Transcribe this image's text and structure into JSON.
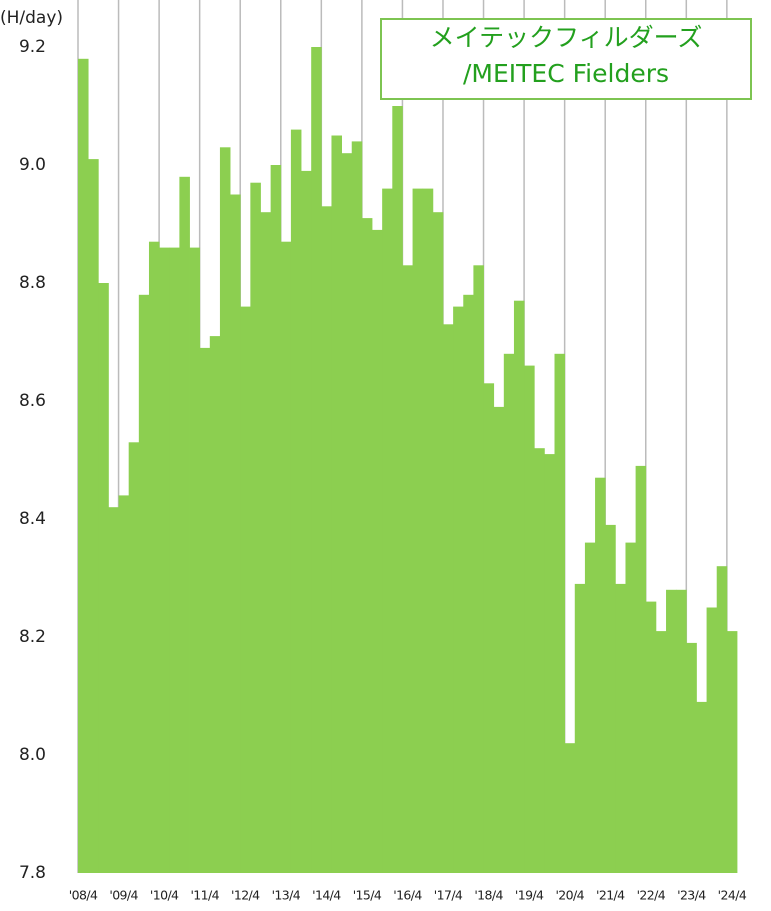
{
  "chart_data": {
    "type": "bar",
    "y_label": "(H/day)",
    "categories": [
      "'08/4",
      null,
      null,
      null,
      "'09/4",
      null,
      null,
      null,
      "'10/4",
      null,
      null,
      null,
      "'11/4",
      null,
      null,
      null,
      "'12/4",
      null,
      null,
      null,
      "'13/4",
      null,
      null,
      null,
      "'14/4",
      null,
      null,
      null,
      "'15/4",
      null,
      null,
      null,
      "'16/4",
      null,
      null,
      null,
      "'17/4",
      null,
      null,
      null,
      "'18/4",
      null,
      null,
      null,
      "'19/4",
      null,
      null,
      null,
      "'20/4",
      null,
      null,
      null,
      "'21/4",
      null,
      null,
      null,
      "'22/4",
      null,
      null,
      null,
      "'23/4",
      null,
      null,
      null,
      "'24/4"
    ],
    "series": [
      {
        "name": "メイテックフィルダーズ\n/MEITEC Fielders",
        "color": "#8ccf50",
        "values": [
          9.18,
          9.01,
          8.8,
          8.42,
          8.44,
          8.53,
          8.78,
          8.87,
          8.86,
          8.86,
          8.98,
          8.86,
          8.69,
          8.71,
          9.03,
          8.95,
          8.76,
          8.97,
          8.92,
          9.0,
          8.87,
          9.06,
          8.99,
          9.2,
          8.93,
          9.05,
          9.02,
          9.04,
          8.91,
          8.89,
          8.96,
          9.1,
          8.83,
          8.96,
          8.96,
          8.92,
          8.73,
          8.76,
          8.78,
          8.83,
          8.63,
          8.59,
          8.68,
          8.77,
          8.66,
          8.52,
          8.51,
          8.68,
          8.02,
          8.29,
          8.36,
          8.47,
          8.39,
          8.29,
          8.36,
          8.49,
          8.26,
          8.21,
          8.28,
          8.28,
          8.19,
          8.09,
          8.25,
          8.32,
          8.21
        ]
      }
    ],
    "ylim": [
      7.8,
      9.2
    ],
    "yticks": [
      7.8,
      {
        "value": 8,
        "label": "8.0"
      },
      8.2,
      8.4,
      8.6,
      8.8,
      {
        "value": 9,
        "label": "9.0"
      },
      9.2
    ],
    "grid": true
  }
}
